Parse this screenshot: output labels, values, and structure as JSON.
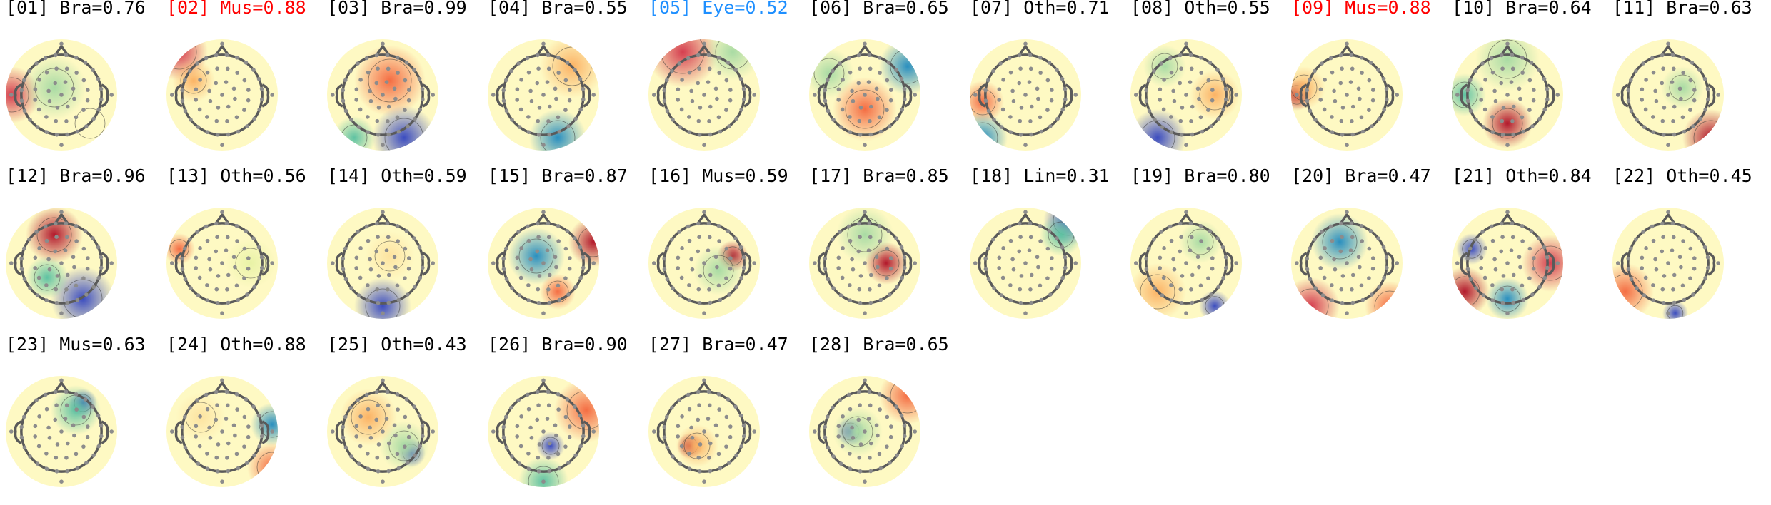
{
  "colors": {
    "default_label": "#000000",
    "muscle_label": "#ff0000",
    "eye_label": "#1e8fff",
    "head_outline": "#5a5a5a",
    "electrode": "#8c8c8c",
    "scalp_colormap": [
      "#3b4cc0",
      "#2a8fbf",
      "#5ec2a2",
      "#a9dba4",
      "#e8f2a6",
      "#fef9c3",
      "#fde3a0",
      "#fbb365",
      "#f46d43",
      "#d53e4f",
      "#b2182b"
    ]
  },
  "components": [
    {
      "label": "[01] Bra=0.76",
      "color": "default_label",
      "icon": "scalp-topography-icon"
    },
    {
      "label": "[02] Mus=0.88",
      "color": "muscle_label",
      "icon": "scalp-topography-icon"
    },
    {
      "label": "[03] Bra=0.99",
      "color": "default_label",
      "icon": "scalp-topography-icon"
    },
    {
      "label": "[04] Bra=0.55",
      "color": "default_label",
      "icon": "scalp-topography-icon"
    },
    {
      "label": "[05] Eye=0.52",
      "color": "eye_label",
      "icon": "scalp-topography-icon"
    },
    {
      "label": "[06] Bra=0.65",
      "color": "default_label",
      "icon": "scalp-topography-icon"
    },
    {
      "label": "[07] Oth=0.71",
      "color": "default_label",
      "icon": "scalp-topography-icon"
    },
    {
      "label": "[08] Oth=0.55",
      "color": "default_label",
      "icon": "scalp-topography-icon"
    },
    {
      "label": "[09] Mus=0.88",
      "color": "muscle_label",
      "icon": "scalp-topography-icon"
    },
    {
      "label": "[10] Bra=0.64",
      "color": "default_label",
      "icon": "scalp-topography-icon"
    },
    {
      "label": "[11] Bra=0.63",
      "color": "default_label",
      "icon": "scalp-topography-icon"
    },
    {
      "label": "[12] Bra=0.96",
      "color": "default_label",
      "icon": "scalp-topography-icon"
    },
    {
      "label": "[13] Oth=0.56",
      "color": "default_label",
      "icon": "scalp-topography-icon"
    },
    {
      "label": "[14] Oth=0.59",
      "color": "default_label",
      "icon": "scalp-topography-icon"
    },
    {
      "label": "[15] Bra=0.87",
      "color": "default_label",
      "icon": "scalp-topography-icon"
    },
    {
      "label": "[16] Mus=0.59",
      "color": "default_label",
      "icon": "scalp-topography-icon"
    },
    {
      "label": "[17] Bra=0.85",
      "color": "default_label",
      "icon": "scalp-topography-icon"
    },
    {
      "label": "[18] Lin=0.31",
      "color": "default_label",
      "icon": "scalp-topography-icon"
    },
    {
      "label": "[19] Bra=0.80",
      "color": "default_label",
      "icon": "scalp-topography-icon"
    },
    {
      "label": "[20] Bra=0.47",
      "color": "default_label",
      "icon": "scalp-topography-icon"
    },
    {
      "label": "[21] Oth=0.84",
      "color": "default_label",
      "icon": "scalp-topography-icon"
    },
    {
      "label": "[22] Oth=0.45",
      "color": "default_label",
      "icon": "scalp-topography-icon"
    },
    {
      "label": "[23] Mus=0.63",
      "color": "default_label",
      "icon": "scalp-topography-icon"
    },
    {
      "label": "[24] Oth=0.88",
      "color": "default_label",
      "icon": "scalp-topography-icon"
    },
    {
      "label": "[25] Oth=0.43",
      "color": "default_label",
      "icon": "scalp-topography-icon"
    },
    {
      "label": "[26] Bra=0.90",
      "color": "default_label",
      "icon": "scalp-topography-icon"
    },
    {
      "label": "[27] Bra=0.47",
      "color": "default_label",
      "icon": "scalp-topography-icon"
    },
    {
      "label": "[28] Bra=0.65",
      "color": "default_label",
      "icon": "scalp-topography-icon"
    }
  ]
}
